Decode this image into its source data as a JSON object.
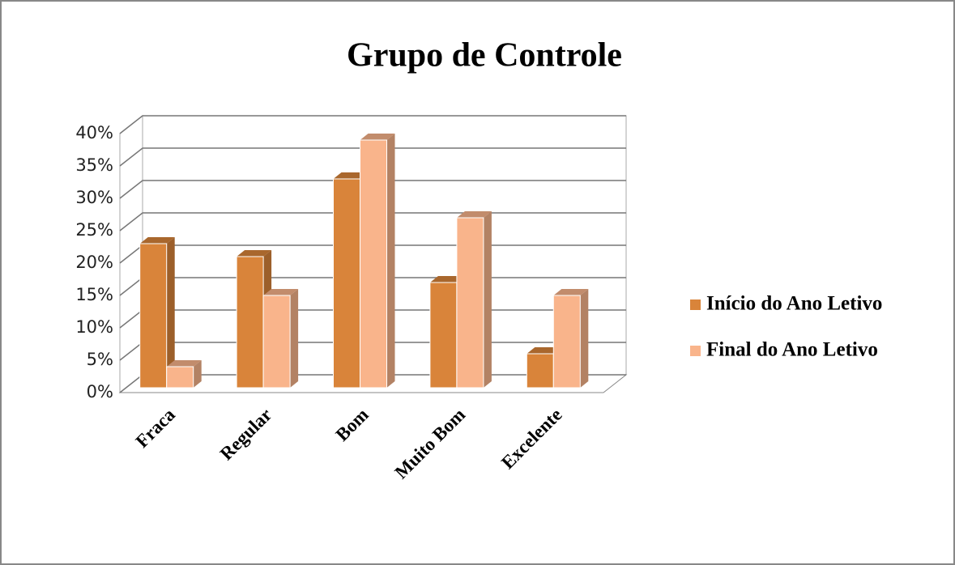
{
  "chart_data": {
    "type": "bar3d",
    "title": "Grupo de Controle",
    "categories": [
      "Fraca",
      "Regular",
      "Bom",
      "Muito Bom",
      "Excelente"
    ],
    "series": [
      {
        "name": "Início do Ano Letivo",
        "color": "#d9843a",
        "values": [
          23,
          21,
          33,
          17,
          6
        ]
      },
      {
        "name": "Final do Ano Letivo",
        "color": "#f9b48b",
        "values": [
          4,
          15,
          39,
          27,
          15
        ]
      }
    ],
    "ylim": [
      0,
      40
    ],
    "yticks": [
      {
        "value": 0,
        "label": "0%"
      },
      {
        "value": 5,
        "label": "5%"
      },
      {
        "value": 10,
        "label": "10%"
      },
      {
        "value": 15,
        "label": "15%"
      },
      {
        "value": 20,
        "label": "20%"
      },
      {
        "value": 25,
        "label": "25%"
      },
      {
        "value": 30,
        "label": "30%"
      },
      {
        "value": 35,
        "label": "35%"
      },
      {
        "value": 40,
        "label": "40%"
      }
    ],
    "grid": true,
    "legend": "right"
  }
}
